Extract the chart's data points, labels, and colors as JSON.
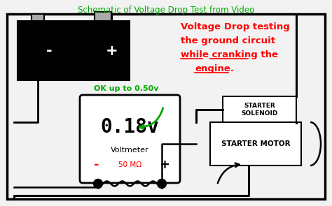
{
  "title": "Schematic of Voltage Drop Test from Video",
  "title_color": "#00aa00",
  "bg_color": "#f2f2f2",
  "voltmeter_reading": "0.18v",
  "voltmeter_label": "Voltmeter",
  "ok_text": "OK up to 0.50v",
  "resistance_label": "50 MΩ",
  "red_line1": "Voltage Drop testing",
  "red_line2": "the ground circuit",
  "red_line3": "while cranking the",
  "red_line4": "engine.",
  "starter_solenoid": "STARTER\nSOLENOID",
  "starter_motor": "STARTER MOTOR",
  "battery_minus": "-",
  "battery_plus": "+"
}
